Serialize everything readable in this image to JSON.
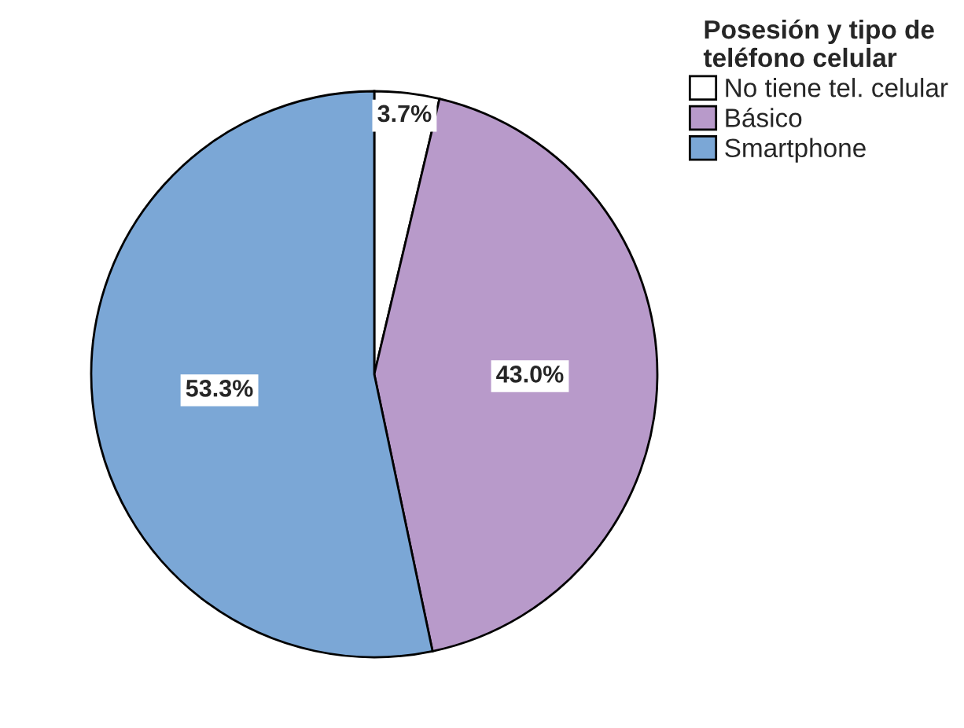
{
  "chart_data": {
    "type": "pie",
    "legend_title": "Posesión y tipo de\nteléfono celular",
    "categories": [
      "No tiene tel. celular",
      "Básico",
      "Smartphone"
    ],
    "values": [
      3.7,
      43.0,
      53.3
    ],
    "value_labels": [
      "3.7%",
      "43.0%",
      "53.3%"
    ],
    "colors": [
      "#ffffff",
      "#b89aca",
      "#7ba7d6"
    ],
    "legend": "top right"
  }
}
